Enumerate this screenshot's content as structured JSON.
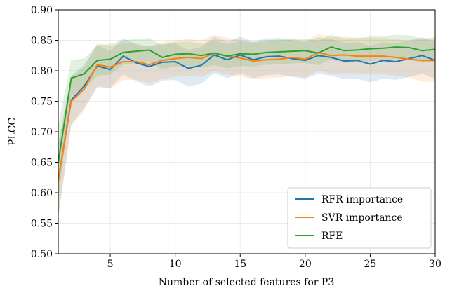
{
  "chart_data": {
    "type": "line",
    "xlabel": "Number of selected features for P3",
    "ylabel": "PLCC",
    "x": [
      1,
      2,
      3,
      4,
      5,
      6,
      7,
      8,
      9,
      10,
      11,
      12,
      13,
      14,
      15,
      16,
      17,
      18,
      19,
      20,
      21,
      22,
      23,
      24,
      25,
      26,
      27,
      28,
      29,
      30
    ],
    "xlim": [
      1,
      30
    ],
    "xticks": [
      5,
      10,
      15,
      20,
      25,
      30
    ],
    "ylim": [
      0.5,
      0.9
    ],
    "yticks": [
      {
        "value": 0.5,
        "label": "0.50"
      },
      {
        "value": 0.55,
        "label": "0.55"
      },
      {
        "value": 0.6,
        "label": "0.60"
      },
      {
        "value": 0.65,
        "label": "0.65"
      },
      {
        "value": 0.7,
        "label": "0.70"
      },
      {
        "value": 0.75,
        "label": "0.75"
      },
      {
        "value": 0.8,
        "label": "0.80"
      },
      {
        "value": 0.85,
        "label": "0.85"
      },
      {
        "value": 0.9,
        "label": "0.90"
      }
    ],
    "grid": true,
    "legend": "lower right",
    "series": [
      {
        "name": "RFR importance",
        "color": "#1f77b4",
        "values": [
          0.62,
          0.752,
          0.775,
          0.808,
          0.802,
          0.824,
          0.813,
          0.807,
          0.814,
          0.815,
          0.804,
          0.809,
          0.826,
          0.818,
          0.826,
          0.818,
          0.823,
          0.824,
          0.82,
          0.817,
          0.825,
          0.822,
          0.816,
          0.817,
          0.811,
          0.817,
          0.815,
          0.82,
          0.825,
          0.817
        ],
        "errors": [
          0.06,
          0.04,
          0.035,
          0.035,
          0.03,
          0.03,
          0.03,
          0.033,
          0.03,
          0.03,
          0.03,
          0.03,
          0.03,
          0.03,
          0.03,
          0.03,
          0.03,
          0.03,
          0.03,
          0.03,
          0.03,
          0.03,
          0.03,
          0.03,
          0.03,
          0.03,
          0.03,
          0.03,
          0.03,
          0.03
        ]
      },
      {
        "name": "SVR importance",
        "color": "#ff7f0e",
        "values": [
          0.62,
          0.75,
          0.77,
          0.81,
          0.806,
          0.815,
          0.815,
          0.81,
          0.817,
          0.82,
          0.822,
          0.82,
          0.829,
          0.824,
          0.821,
          0.816,
          0.818,
          0.819,
          0.822,
          0.819,
          0.83,
          0.825,
          0.826,
          0.824,
          0.824,
          0.824,
          0.822,
          0.819,
          0.817,
          0.817
        ],
        "errors": [
          0.06,
          0.04,
          0.035,
          0.035,
          0.035,
          0.03,
          0.03,
          0.03,
          0.03,
          0.03,
          0.03,
          0.03,
          0.03,
          0.03,
          0.03,
          0.03,
          0.03,
          0.03,
          0.03,
          0.03,
          0.03,
          0.03,
          0.03,
          0.03,
          0.03,
          0.03,
          0.03,
          0.03,
          0.035,
          0.035
        ]
      },
      {
        "name": "RFE",
        "color": "#2ca02c",
        "values": [
          0.65,
          0.788,
          0.795,
          0.817,
          0.819,
          0.83,
          0.832,
          0.834,
          0.822,
          0.827,
          0.828,
          0.825,
          0.829,
          0.824,
          0.828,
          0.827,
          0.83,
          0.831,
          0.832,
          0.833,
          0.829,
          0.839,
          0.833,
          0.834,
          0.836,
          0.837,
          0.839,
          0.838,
          0.833,
          0.835
        ],
        "errors": [
          0.06,
          0.03,
          0.025,
          0.025,
          0.025,
          0.02,
          0.02,
          0.02,
          0.02,
          0.02,
          0.02,
          0.02,
          0.02,
          0.02,
          0.02,
          0.02,
          0.02,
          0.02,
          0.02,
          0.02,
          0.02,
          0.02,
          0.02,
          0.02,
          0.02,
          0.02,
          0.02,
          0.02,
          0.02,
          0.02
        ]
      }
    ]
  }
}
